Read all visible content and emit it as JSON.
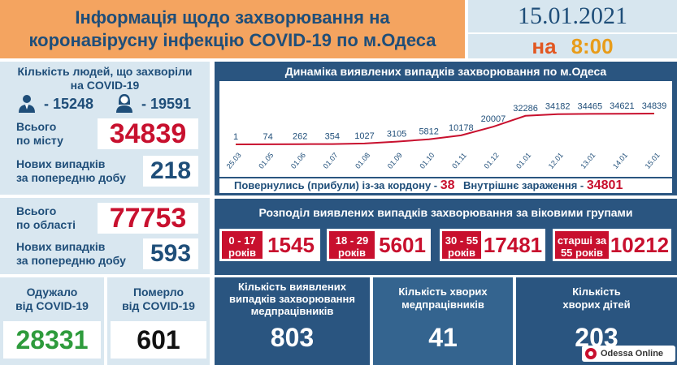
{
  "header": {
    "title_line1": "Інформація щодо захворювання на",
    "title_line2": "коронавірусну інфекцію COVID-19 по м.Одеса",
    "date": "15.01.2021",
    "time_prefix": "на",
    "time": "8:00"
  },
  "city": {
    "sick_title_line1": "Кількість людей, що захворіли",
    "sick_title_line2": "на COVID-19",
    "male_icon": "man-icon",
    "male_count": "- 15248",
    "female_icon": "woman-icon",
    "female_count": "- 19591",
    "total_label_line1": "Всього",
    "total_label_line2": "по місту",
    "total_value": "34839",
    "new_label_line1": "Нових випадків",
    "new_label_line2": "за попередню добу",
    "new_value": "218"
  },
  "region": {
    "total_label_line1": "Всього",
    "total_label_line2": "по області",
    "total_value": "77753",
    "new_label_line1": "Нових випадків",
    "new_label_line2": "за попередню добу",
    "new_value": "593"
  },
  "chart_data": {
    "type": "line",
    "title": "Динаміка виявлених випадків захворювання по м.Одеса",
    "categories": [
      "25.03",
      "01.05",
      "01.06",
      "01.07",
      "01.08",
      "01.09",
      "01.10",
      "01.11",
      "01.12",
      "01.01",
      "12.01",
      "13.01",
      "14.01",
      "15.01"
    ],
    "point_labels": [
      "1",
      "74",
      "262",
      "354",
      "1027",
      "3105",
      "5812",
      "10178",
      "20007",
      "32286",
      "34182",
      "34465",
      "34621",
      "34839"
    ],
    "values": [
      1,
      74,
      262,
      354,
      1027,
      3105,
      5812,
      10178,
      20007,
      32286,
      34182,
      34465,
      34621,
      34839
    ],
    "ylim": [
      0,
      34839
    ],
    "line_color": "#c8102e"
  },
  "border": {
    "returned_label": "Повернулись (прибули) із-за кордону -",
    "returned_value": "38",
    "internal_label": "Внутрішнє зараження -",
    "internal_value": "34801"
  },
  "age": {
    "title": "Розподіл виявлених випадків захворювання за віковими групами",
    "groups": [
      {
        "line1": "0 - 17",
        "line2": "років",
        "value": "1545"
      },
      {
        "line1": "18 - 29",
        "line2": "років",
        "value": "5601"
      },
      {
        "line1": "30 - 55",
        "line2": "років",
        "value": "17481"
      },
      {
        "line1": "старші за",
        "line2": "55 років",
        "value": "10212"
      }
    ]
  },
  "bottom": {
    "recovered_line1": "Одужало",
    "recovered_line2": "від COVID-19",
    "recovered_value": "28331",
    "died_line1": "Померло",
    "died_line2": "від COVID-19",
    "died_value": "601",
    "medics_line1": "Кількість виявлених",
    "medics_line2": "випадків захворювання",
    "medics_line3": "медпрацівників",
    "medics_value": "803",
    "sick_medics_line1": "Кількість хворих",
    "sick_medics_line2": "медпрацівників",
    "sick_medics_value": "41",
    "children_line1": "Кількість",
    "children_line2": "хворих дітей",
    "children_value": "203"
  },
  "watermark": {
    "text": "Odessa Online"
  }
}
